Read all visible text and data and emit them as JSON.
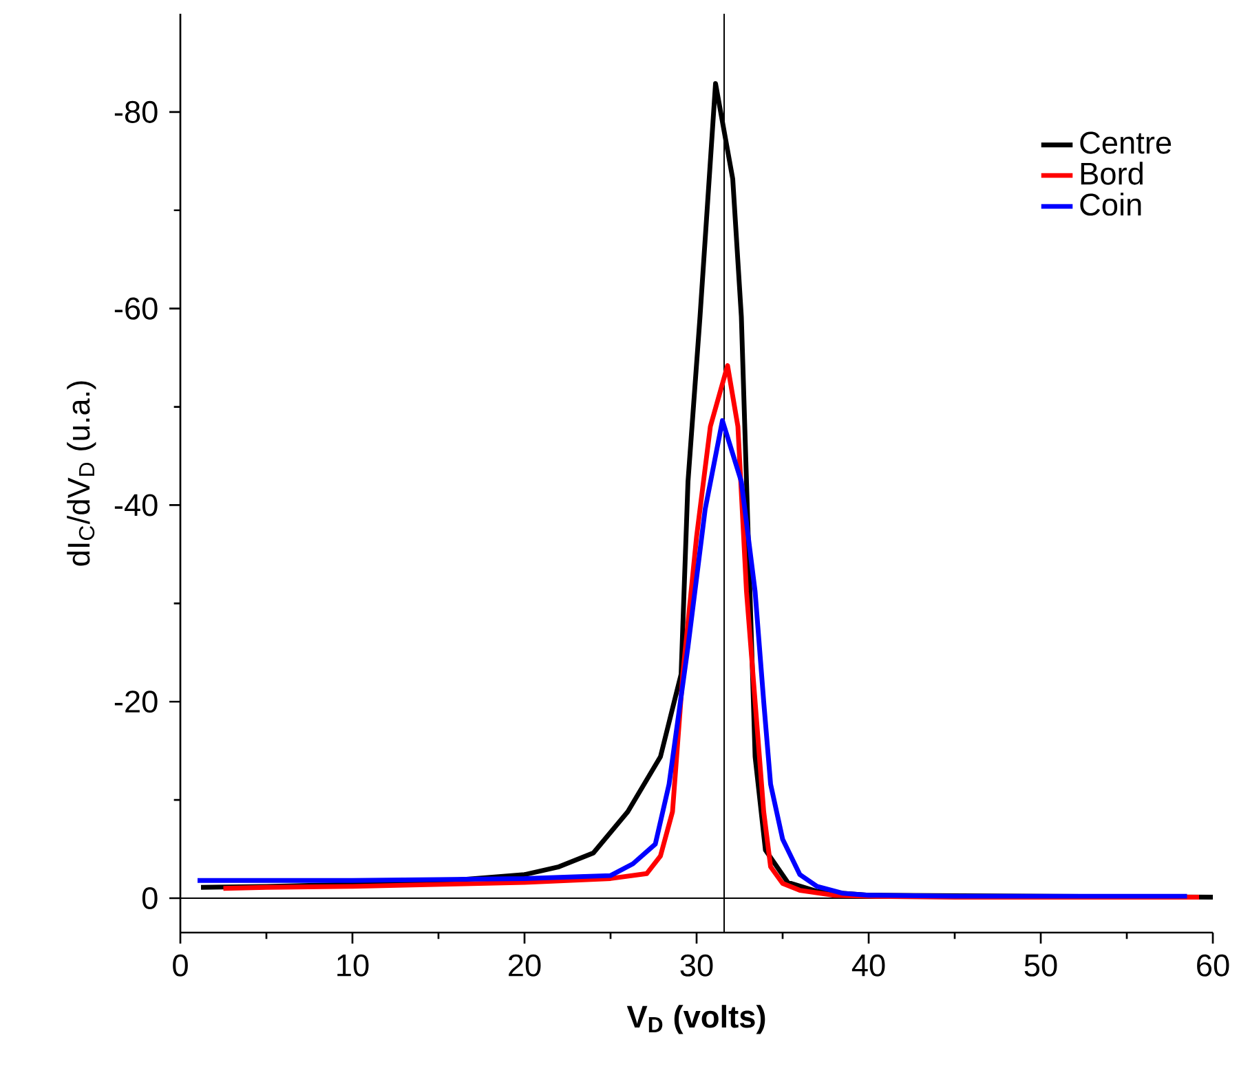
{
  "chart_data": {
    "type": "line",
    "xlabel": "V$_{D}$ (volts)",
    "ylabel": "dI$_{C}$/dV$_{D}$ (u.a.)",
    "xlim": [
      0,
      60
    ],
    "ylim": [
      3.5,
      -90
    ],
    "xticks": [
      0,
      10,
      20,
      30,
      40,
      50,
      60
    ],
    "yticks": [
      0,
      -20,
      -40,
      -60,
      -80
    ],
    "grid": false,
    "legend": "top right",
    "marker": "none",
    "line_style": "solid",
    "ref_lines": [
      {
        "axis": "x",
        "value": 31.6,
        "color": "#000000"
      },
      {
        "axis": "y",
        "value": 0,
        "color": "#000000"
      }
    ],
    "series": [
      {
        "name": "Centre",
        "color": "#000000",
        "x": [
          1.2,
          5,
          10,
          15,
          20,
          22,
          24,
          26.0,
          27.9,
          29.1,
          29.5,
          30.2,
          31.1,
          32.1,
          32.6,
          32.9,
          33.2,
          33.4,
          34.0,
          35.3,
          37.0,
          40,
          60
        ],
        "values": [
          -1.1,
          -1.2,
          -1.4,
          -1.7,
          -2.4,
          -3.2,
          -4.6,
          -8.8,
          -14.4,
          -22.8,
          -42.4,
          -59.2,
          -82.9,
          -73.2,
          -59.2,
          -42.4,
          -25.6,
          -14.4,
          -4.9,
          -1.6,
          -0.7,
          -0.3,
          -0.1
        ]
      },
      {
        "name": "Bord",
        "color": "#ff0000",
        "x": [
          2.5,
          5,
          10,
          15,
          20,
          25,
          27.1,
          27.9,
          28.6,
          29.2,
          30.0,
          30.8,
          31.8,
          32.4,
          32.9,
          33.4,
          33.9,
          34.3,
          35.0,
          36.0,
          38,
          40,
          45,
          50,
          55,
          59.2
        ],
        "values": [
          -1.0,
          -1.1,
          -1.2,
          -1.4,
          -1.6,
          -2.0,
          -2.5,
          -4.3,
          -8.8,
          -22.8,
          -36.8,
          -48.0,
          -54.2,
          -48.0,
          -31.2,
          -20.0,
          -8.8,
          -3.2,
          -1.5,
          -0.8,
          -0.3,
          -0.2,
          -0.1,
          -0.1,
          -0.1,
          -0.1
        ]
      },
      {
        "name": "Coin",
        "color": "#0000ff",
        "x": [
          1,
          5,
          10,
          15,
          20,
          25,
          26.3,
          27.6,
          28.4,
          29.5,
          30.5,
          31.5,
          32.6,
          33.4,
          33.9,
          34.3,
          35.0,
          36.0,
          37.0,
          38.5,
          40,
          45,
          50,
          55,
          58.5
        ],
        "values": [
          -1.8,
          -1.8,
          -1.8,
          -1.9,
          -2.0,
          -2.3,
          -3.5,
          -5.5,
          -11.6,
          -25.6,
          -39.6,
          -48.6,
          -42.4,
          -31.2,
          -20.0,
          -11.6,
          -6.0,
          -2.4,
          -1.2,
          -0.5,
          -0.3,
          -0.2,
          -0.2,
          -0.2,
          -0.2
        ]
      }
    ]
  }
}
